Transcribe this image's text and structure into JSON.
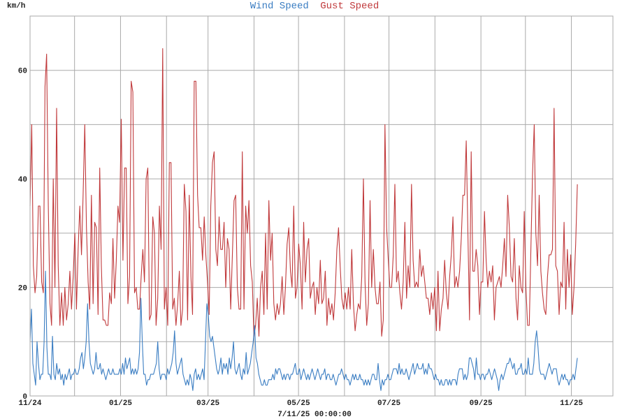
{
  "chart_data": {
    "type": "line",
    "title_parts": [
      {
        "text": "Wind Speed",
        "color": "#3a7dc2"
      },
      {
        "text": "Gust Speed",
        "color": "#c0393b"
      }
    ],
    "ylabel": "km/h",
    "xlabel": "7/11/25 00:00:00",
    "ylim": [
      0,
      70
    ],
    "y_ticks": [
      0,
      20,
      40,
      60
    ],
    "y_grid_step": 10,
    "x_unit": "days since 11/01/24",
    "xlim": [
      0,
      393
    ],
    "x_ticks": [
      {
        "day": 0,
        "label": "11/24"
      },
      {
        "day": 61,
        "label": "01/25"
      },
      {
        "day": 120,
        "label": "03/25"
      },
      {
        "day": 181,
        "label": "05/25"
      },
      {
        "day": 242,
        "label": "07/25"
      },
      {
        "day": 304,
        "label": "09/25"
      },
      {
        "day": 365,
        "label": "11/25"
      }
    ],
    "x_grid_days": [
      0,
      30,
      61,
      92,
      120,
      151,
      181,
      212,
      242,
      273,
      304,
      334,
      365,
      395
    ],
    "grid": true,
    "legend": "top-center",
    "series": [
      {
        "name": "Gust Speed",
        "color": "#c0393b",
        "x_range": [
          0,
          369
        ],
        "values": [
          35,
          50,
          24,
          19,
          22,
          35,
          35,
          21,
          19,
          57,
          63,
          35,
          17,
          13,
          40,
          20,
          53,
          24,
          13,
          19,
          13,
          20,
          14,
          17,
          23,
          16,
          22,
          30,
          16,
          27,
          35,
          26,
          37,
          50,
          31,
          21,
          16,
          37,
          17,
          32,
          31,
          15,
          42,
          24,
          14,
          14,
          13,
          13,
          19,
          17,
          29,
          18,
          25,
          35,
          32,
          51,
          25,
          42,
          42,
          17,
          22,
          58,
          56,
          19,
          20,
          16,
          16,
          22,
          27,
          21,
          40,
          42,
          14,
          15,
          33,
          30,
          13,
          18,
          35,
          27,
          64,
          16,
          20,
          13,
          43,
          43,
          16,
          18,
          13,
          17,
          23,
          13,
          16,
          39,
          34,
          14,
          37,
          22,
          15,
          58,
          58,
          37,
          31,
          31,
          25,
          33,
          26,
          21,
          15,
          35,
          43,
          45,
          27,
          24,
          33,
          27,
          27,
          32,
          20,
          29,
          27,
          16,
          26,
          36,
          37,
          20,
          16,
          16,
          45,
          16,
          35,
          30,
          36,
          24,
          21,
          11,
          13,
          18,
          11,
          20,
          23,
          15,
          30,
          16,
          36,
          25,
          30,
          17,
          14,
          17,
          15,
          17,
          22,
          15,
          20,
          28,
          31,
          23,
          20,
          35,
          18,
          20,
          28,
          24,
          16,
          32,
          21,
          27,
          29,
          18,
          20,
          21,
          15,
          20,
          17,
          25,
          17,
          18,
          23,
          13,
          18,
          15,
          17,
          14,
          19,
          27,
          31,
          24,
          18,
          16,
          19,
          16,
          20,
          16,
          27,
          17,
          12,
          15,
          17,
          16,
          22,
          40,
          21,
          13,
          17,
          36,
          20,
          27,
          20,
          17,
          17,
          21,
          11,
          14,
          50,
          31,
          25,
          20,
          20,
          26,
          39,
          21,
          23,
          19,
          16,
          21,
          32,
          18,
          24,
          20,
          39,
          25,
          20,
          21,
          20,
          27,
          22,
          24,
          21,
          18,
          18,
          15,
          19,
          16,
          20,
          12,
          23,
          12,
          16,
          18,
          25,
          19,
          16,
          22,
          26,
          33,
          20,
          22,
          20,
          23,
          29,
          37,
          37,
          47,
          30,
          14,
          45,
          23,
          23,
          27,
          24,
          15,
          21,
          21,
          34,
          25,
          20,
          23,
          21,
          24,
          14,
          20,
          21,
          22,
          20,
          24,
          29,
          22,
          37,
          31,
          22,
          21,
          29,
          18,
          14,
          24,
          20,
          19,
          34,
          20,
          13,
          13,
          27,
          41,
          50,
          30,
          24,
          37,
          23,
          19,
          16,
          15,
          22,
          26,
          26,
          27,
          53,
          24,
          23,
          15,
          21,
          20,
          32,
          16,
          27,
          20,
          26,
          15,
          20,
          28,
          39
        ]
      },
      {
        "name": "Wind Speed",
        "color": "#3a7dc2",
        "x_range": [
          0,
          369
        ],
        "values": [
          10,
          16,
          6,
          4,
          2,
          10,
          6,
          3,
          4,
          4,
          10,
          23,
          9,
          4,
          4,
          3,
          11,
          4,
          3,
          6,
          4,
          5,
          3,
          4,
          2,
          4,
          3,
          4,
          5,
          3,
          4,
          4,
          5,
          4,
          4,
          5,
          7,
          8,
          5,
          7,
          10,
          17,
          10,
          6,
          5,
          4,
          5,
          8,
          5,
          5,
          6,
          4,
          5,
          4,
          3,
          4,
          5,
          4,
          4,
          5,
          4,
          4,
          4,
          4,
          5,
          4,
          6,
          4,
          7,
          5,
          6,
          7,
          4,
          5,
          4,
          5,
          4,
          5,
          8,
          18,
          10,
          4,
          4,
          2,
          3,
          3,
          4,
          4,
          4,
          5,
          6,
          10,
          5,
          3,
          4,
          4,
          4,
          3,
          5,
          4,
          5,
          6,
          8,
          12,
          6,
          4,
          5,
          6,
          7,
          4,
          3,
          2,
          3,
          2,
          4,
          3,
          1,
          4,
          5,
          3,
          4,
          3,
          4,
          5,
          3,
          10,
          17,
          15,
          11,
          10,
          11,
          9,
          7,
          5,
          4,
          5,
          7,
          4,
          6,
          5,
          6,
          4,
          7,
          5,
          7,
          10,
          5,
          4,
          5,
          6,
          4,
          3,
          5,
          4,
          8,
          4,
          5,
          6,
          8,
          10,
          13,
          7,
          6,
          4,
          3,
          2,
          2,
          3,
          2,
          2,
          3,
          3,
          3,
          4,
          3,
          5,
          4,
          5,
          5,
          4,
          3,
          4,
          3,
          4,
          4,
          3,
          4,
          4,
          5,
          6,
          4,
          4,
          5,
          3,
          4,
          5,
          4,
          3,
          4,
          3,
          4,
          5,
          4,
          3,
          4,
          5,
          4,
          3,
          4,
          4,
          5,
          3,
          4,
          4,
          3,
          3,
          4,
          3,
          2,
          3,
          4,
          4,
          5,
          4,
          3,
          4,
          3,
          3,
          2,
          3,
          4,
          3,
          4,
          3,
          3,
          4,
          3,
          3,
          2,
          3,
          2,
          3,
          2,
          3,
          4,
          4,
          3,
          3,
          6,
          3,
          1,
          3,
          2,
          3,
          3,
          4,
          3,
          3,
          4,
          5,
          5,
          5,
          4,
          6,
          4,
          5,
          4,
          4,
          5,
          4,
          3,
          4,
          5,
          6,
          4,
          5,
          6,
          5,
          5,
          5,
          6,
          4,
          5,
          4,
          6,
          5,
          5,
          4,
          3,
          4,
          3,
          3,
          2,
          3,
          2,
          2,
          3,
          3,
          2,
          3,
          2,
          3,
          3,
          3,
          2,
          4,
          5,
          5,
          5,
          3,
          4,
          3,
          4,
          7,
          7,
          6,
          5,
          3,
          7,
          4,
          4,
          3,
          4,
          4,
          3,
          4,
          4,
          5,
          4,
          3,
          4,
          5,
          4,
          3,
          1,
          3,
          4,
          3,
          4,
          5,
          6,
          6,
          7,
          6,
          5,
          6,
          4,
          4,
          5,
          5,
          6,
          4,
          4,
          5,
          4,
          7,
          4,
          4,
          4,
          6,
          10,
          12,
          9,
          5,
          4,
          4,
          4,
          3,
          4,
          5,
          6,
          5,
          4,
          5,
          5,
          5,
          3,
          2,
          3,
          4,
          3,
          4,
          3,
          3,
          2,
          3,
          3,
          4,
          3,
          5,
          7
        ]
      }
    ]
  }
}
